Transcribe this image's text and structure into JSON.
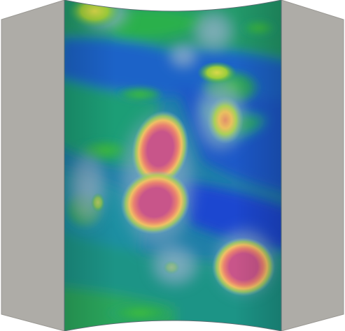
{
  "scene": {
    "kind": "3d-curved-surface-heatmap",
    "background": "#ffffff",
    "side_panel_color": "#aeaca7",
    "side_panel_edge": "#9b9994",
    "colormap": [
      "#1a3fd0",
      "#1d6fc2",
      "#1f9a8a",
      "#27b24a",
      "#8fcb2d",
      "#e6e05a",
      "#f2a35a",
      "#c8558a"
    ],
    "hotspots": [
      {
        "id": "hotspot-upper-red",
        "level": "peak"
      },
      {
        "id": "hotspot-middle-red",
        "level": "peak"
      },
      {
        "id": "hotspot-lower-right-red",
        "level": "peak"
      },
      {
        "id": "hotspot-upper-right-orange",
        "level": "high"
      },
      {
        "id": "hotspot-top-yellow",
        "level": "medium"
      },
      {
        "id": "hotspot-right-yellow",
        "level": "medium"
      }
    ]
  }
}
